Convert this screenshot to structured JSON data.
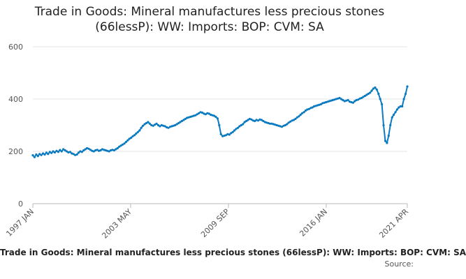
{
  "chart_data": {
    "type": "line",
    "title_line1": "Trade in Goods: Mineral manufactures less precious stones",
    "title_line2": "(66lessP): WW: Imports: BOP: CVM: SA",
    "caption": "Trade in Goods: Mineral manufactures less precious stones (66lessP): WW: Imports: BOP: CVM: SA",
    "source_label": "Source:",
    "ylim": [
      0,
      600
    ],
    "yticks": [
      0,
      200,
      400,
      600
    ],
    "xticks": [
      "1997 JAN",
      "2003 MAY",
      "2009 SEP",
      "2016 JAN",
      "2021 APR"
    ],
    "grid": true,
    "color": "#0b7bc1",
    "series": [
      {
        "x_start": "1997 JAN",
        "x_end": "2021 APR",
        "values": [
          185,
          178,
          188,
          182,
          190,
          186,
          192,
          188,
          195,
          190,
          198,
          194,
          200,
          196,
          202,
          198,
          205,
          200,
          208,
          204,
          200,
          196,
          198,
          192,
          190,
          186,
          188,
          195,
          200,
          198,
          204,
          208,
          212,
          210,
          206,
          202,
          200,
          204,
          206,
          202,
          204,
          208,
          206,
          204,
          202,
          200,
          204,
          206,
          204,
          208,
          212,
          218,
          222,
          226,
          230,
          236,
          242,
          248,
          252,
          258,
          262,
          268,
          274,
          280,
          290,
          298,
          304,
          308,
          312,
          306,
          300,
          298,
          302,
          306,
          300,
          296,
          300,
          298,
          296,
          292,
          290,
          294,
          296,
          298,
          300,
          304,
          308,
          312,
          316,
          320,
          324,
          328,
          330,
          332,
          334,
          336,
          338,
          342,
          346,
          350,
          348,
          344,
          342,
          346,
          344,
          340,
          338,
          336,
          332,
          326,
          300,
          266,
          258,
          260,
          262,
          266,
          264,
          270,
          274,
          280,
          286,
          290,
          296,
          300,
          304,
          312,
          316,
          320,
          324,
          322,
          318,
          316,
          320,
          318,
          322,
          320,
          316,
          312,
          310,
          308,
          306,
          306,
          304,
          302,
          300,
          298,
          296,
          294,
          298,
          300,
          304,
          310,
          314,
          318,
          320,
          324,
          330,
          334,
          340,
          346,
          350,
          356,
          360,
          362,
          366,
          368,
          372,
          374,
          376,
          378,
          380,
          384,
          386,
          388,
          390,
          392,
          394,
          396,
          398,
          400,
          402,
          404,
          400,
          396,
          392,
          394,
          396,
          390,
          388,
          386,
          392,
          396,
          398,
          402,
          404,
          408,
          412,
          416,
          420,
          424,
          432,
          440,
          444,
          436,
          420,
          400,
          380,
          300,
          240,
          232,
          260,
          300,
          330,
          340,
          350,
          360,
          368,
          372,
          372,
          400,
          420,
          448
        ]
      }
    ]
  }
}
